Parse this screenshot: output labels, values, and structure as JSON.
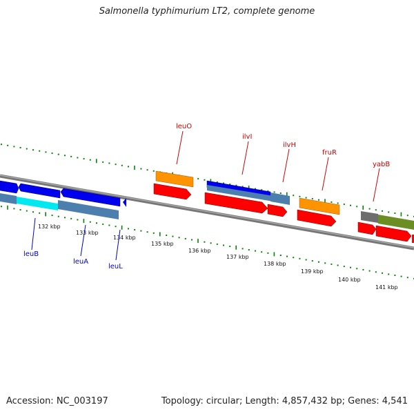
{
  "title": "Salmonella typhimurium LT2, complete genome",
  "footer": {
    "accession": "Accession: NC_003197",
    "summary": "Topology: circular; Length: 4,857,432 bp; Genes: 4,541"
  },
  "colors": {
    "blue": "#0000ee",
    "steel": "#4d7fae",
    "cyan": "#00e8f0",
    "orange": "#ff9400",
    "red": "#ff0000",
    "olive": "#6b8e23",
    "grey": "#7a7a7a",
    "tick_green": "#008800",
    "label_blue": "#0000cc",
    "label_red": "#cc0000"
  },
  "kbp_labels": [
    "132 kbp",
    "133 kbp",
    "134 kbp",
    "135 kbp",
    "136 kbp",
    "137 kbp",
    "138 kbp",
    "139 kbp",
    "140 kbp",
    "141 kbp"
  ],
  "gene_labels_below": [
    "leuB",
    "leuA",
    "leuL"
  ],
  "gene_labels_above": [
    "leuO",
    "ilvI",
    "ilvH",
    "fruR",
    "yabB"
  ]
}
